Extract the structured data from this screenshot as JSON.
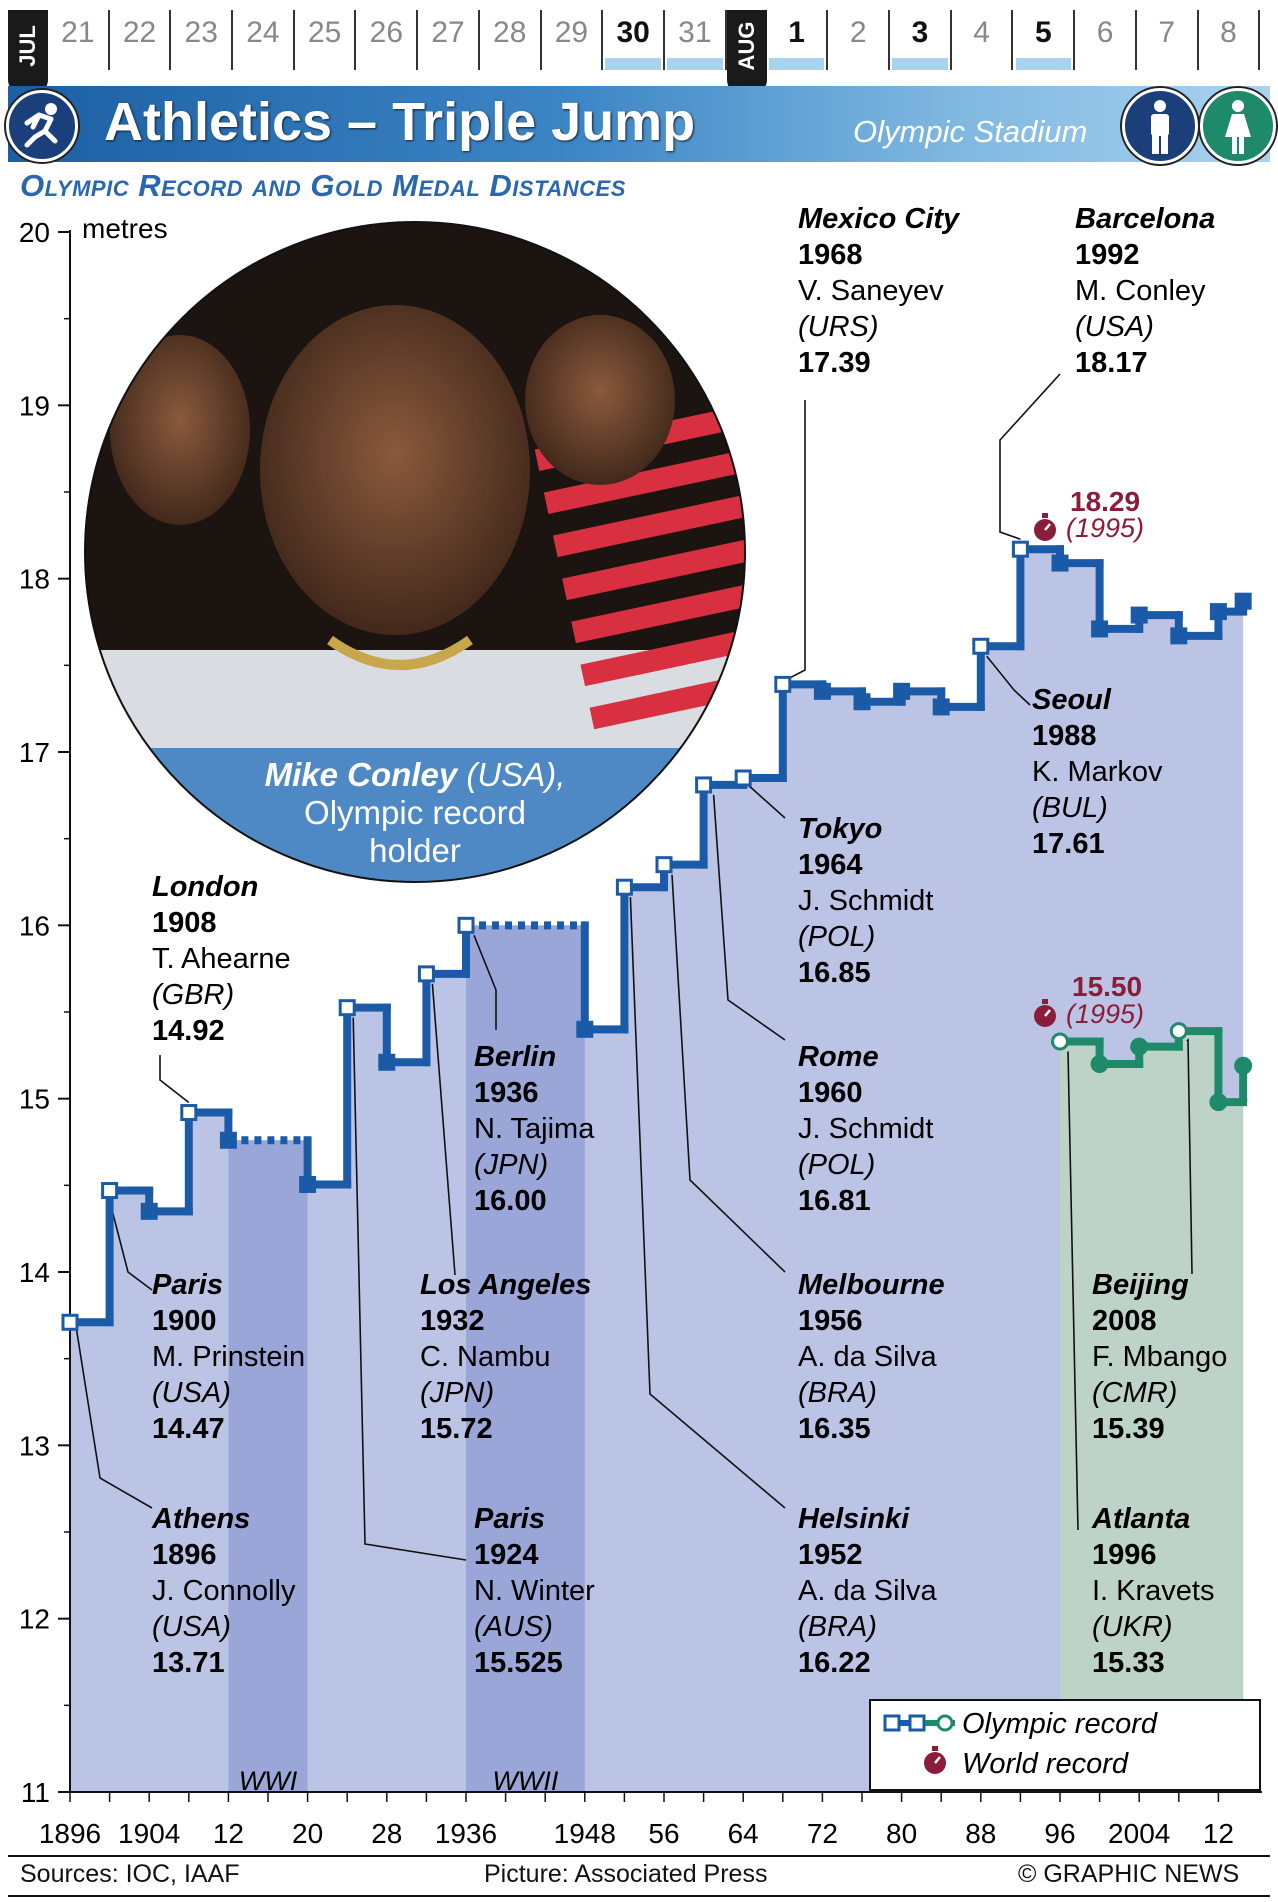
{
  "calendar": {
    "months": [
      {
        "label": "JUL",
        "days": [
          "21",
          "22",
          "23",
          "24",
          "25",
          "26",
          "27",
          "28",
          "29",
          "30",
          "31"
        ],
        "bold": [
          "30"
        ],
        "highlighted": [
          "30",
          "31"
        ]
      },
      {
        "label": "AUG",
        "days": [
          "1",
          "2",
          "3",
          "4",
          "5",
          "6",
          "7",
          "8"
        ],
        "bold": [
          "1",
          "3",
          "5"
        ],
        "highlighted": [
          "1",
          "3",
          "5"
        ]
      }
    ]
  },
  "header": {
    "title": "Athletics – Triple Jump",
    "venue": "Olympic Stadium",
    "sport_icon": "running-athlete-icon",
    "gender_icons": [
      "man-icon",
      "woman-icon"
    ],
    "subtitle": "Olympic Record and Gold Medal Distances"
  },
  "photo": {
    "caption_name": "Mike Conley",
    "caption_country": " (USA),",
    "caption_line2": "Olympic record",
    "caption_line3": "holder"
  },
  "chart_data": {
    "type": "line",
    "ylabel": "metres",
    "ylim": [
      11,
      20
    ],
    "yticks": [
      "11",
      "12",
      "13",
      "14",
      "15",
      "16",
      "17",
      "18",
      "19",
      "20"
    ],
    "xlim": [
      1896,
      2016
    ],
    "xticks": [
      {
        "value": 1896,
        "label": "1896"
      },
      {
        "value": 1904,
        "label": "1904"
      },
      {
        "value": 1912,
        "label": "12"
      },
      {
        "value": 1920,
        "label": "20"
      },
      {
        "value": 1928,
        "label": "28"
      },
      {
        "value": 1936,
        "label": "1936"
      },
      {
        "value": 1948,
        "label": "1948"
      },
      {
        "value": 1956,
        "label": "56"
      },
      {
        "value": 1964,
        "label": "64"
      },
      {
        "value": 1972,
        "label": "72"
      },
      {
        "value": 1980,
        "label": "80"
      },
      {
        "value": 1988,
        "label": "88"
      },
      {
        "value": 1996,
        "label": "96"
      },
      {
        "value": 2004,
        "label": "2004"
      },
      {
        "value": 2012,
        "label": "12"
      }
    ],
    "bands": [
      {
        "label": "WWI",
        "from": 1912,
        "to": 1920
      },
      {
        "label": "WWII",
        "from": 1936,
        "to": 1948
      }
    ],
    "series": [
      {
        "name": "Men",
        "color": "#1b5aa6",
        "x": [
          1896,
          1900,
          1904,
          1908,
          1912,
          1920,
          1924,
          1928,
          1932,
          1936,
          1948,
          1952,
          1956,
          1960,
          1964,
          1968,
          1972,
          1976,
          1980,
          1984,
          1988,
          1992,
          1996,
          2000,
          2004,
          2008,
          2012
        ],
        "y": [
          13.71,
          14.47,
          14.35,
          14.92,
          14.76,
          14.505,
          15.525,
          15.21,
          15.72,
          16.0,
          15.4,
          16.22,
          16.35,
          16.81,
          16.85,
          17.39,
          17.35,
          17.29,
          17.35,
          17.26,
          17.61,
          18.17,
          18.09,
          17.71,
          17.79,
          17.67,
          17.81
        ]
      },
      {
        "name": "Women",
        "color": "#1e8a6a",
        "x": [
          1996,
          2000,
          2004,
          2008,
          2012
        ],
        "y": [
          15.33,
          15.2,
          15.3,
          15.39,
          14.98
        ]
      }
    ],
    "olympic_record_points": [
      {
        "series": 0,
        "x": 1896
      },
      {
        "series": 0,
        "x": 1900
      },
      {
        "series": 0,
        "x": 1908
      },
      {
        "series": 0,
        "x": 1924
      },
      {
        "series": 0,
        "x": 1932
      },
      {
        "series": 0,
        "x": 1936
      },
      {
        "series": 0,
        "x": 1952
      },
      {
        "series": 0,
        "x": 1956
      },
      {
        "series": 0,
        "x": 1960
      },
      {
        "series": 0,
        "x": 1964
      },
      {
        "series": 0,
        "x": 1968
      },
      {
        "series": 0,
        "x": 1988
      },
      {
        "series": 0,
        "x": 1992
      },
      {
        "series": 1,
        "x": 1996
      },
      {
        "series": 1,
        "x": 2008
      }
    ],
    "world_records": [
      {
        "value": "18.29",
        "year": "(1995)",
        "y": 18.29
      },
      {
        "value": "15.50",
        "year": "(1995)",
        "y": 15.5
      }
    ],
    "annotations": [
      {
        "city": "Athens",
        "year": "1896",
        "athlete": "J. Connolly",
        "country": "(USA)",
        "distance": "13.71"
      },
      {
        "city": "Paris",
        "year": "1900",
        "athlete": "M. Prinstein",
        "country": "(USA)",
        "distance": "14.47"
      },
      {
        "city": "London",
        "year": "1908",
        "athlete": "T. Ahearne",
        "country": "(GBR)",
        "distance": "14.92"
      },
      {
        "city": "Paris",
        "year": "1924",
        "athlete": "N. Winter",
        "country": "(AUS)",
        "distance": "15.525"
      },
      {
        "city": "Los Angeles",
        "year": "1932",
        "athlete": "C. Nambu",
        "country": "(JPN)",
        "distance": "15.72"
      },
      {
        "city": "Berlin",
        "year": "1936",
        "athlete": "N. Tajima",
        "country": "(JPN)",
        "distance": "16.00"
      },
      {
        "city": "Helsinki",
        "year": "1952",
        "athlete": "A. da Silva",
        "country": "(BRA)",
        "distance": "16.22"
      },
      {
        "city": "Melbourne",
        "year": "1956",
        "athlete": "A. da Silva",
        "country": "(BRA)",
        "distance": "16.35"
      },
      {
        "city": "Rome",
        "year": "1960",
        "athlete": "J. Schmidt",
        "country": "(POL)",
        "distance": "16.81"
      },
      {
        "city": "Tokyo",
        "year": "1964",
        "athlete": "J. Schmidt",
        "country": "(POL)",
        "distance": "16.85"
      },
      {
        "city": "Mexico City",
        "year": "1968",
        "athlete": "V. Saneyev",
        "country": "(URS)",
        "distance": "17.39"
      },
      {
        "city": "Seoul",
        "year": "1988",
        "athlete": "K. Markov",
        "country": "(BUL)",
        "distance": "17.61"
      },
      {
        "city": "Barcelona",
        "year": "1992",
        "athlete": "M. Conley",
        "country": "(USA)",
        "distance": "18.17"
      },
      {
        "city": "Atlanta",
        "year": "1996",
        "athlete": "I. Kravets",
        "country": "(UKR)",
        "distance": "15.33"
      },
      {
        "city": "Beijing",
        "year": "2008",
        "athlete": "F. Mbango",
        "country": "(CMR)",
        "distance": "15.39"
      }
    ],
    "legend": {
      "position": "bottom-right",
      "items": [
        {
          "label": "Olympic record",
          "icon": "olympic-record-marker-icon"
        },
        {
          "label": "World record",
          "icon": "stopwatch-icon"
        }
      ]
    },
    "colors": {
      "men_fill": "#bcc4e6",
      "women_fill": "#bdd3c8",
      "band_fill": "#9aa6d8",
      "world_record": "#8b1c3a"
    }
  },
  "footer": {
    "sources": "Sources: IOC, IAAF",
    "picture": "Picture: Associated Press",
    "credit": "© GRAPHIC NEWS"
  }
}
